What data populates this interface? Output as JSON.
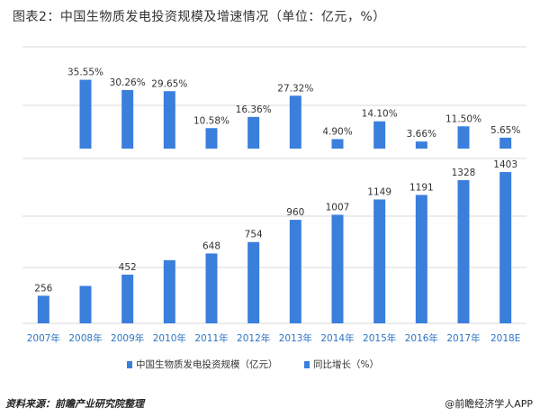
{
  "title": "图表2：中国生物质发电投资规模及增速情况（单位：亿元，%）",
  "source": "资料来源：前瞻产业研究院整理",
  "brand": "@前瞻经济学人APP",
  "colors": {
    "bar": "#3a7fdc",
    "grid": "#d9d9d9",
    "axis_text": "#2e75c6",
    "label": "#333333"
  },
  "chart_data": [
    {
      "type": "bar",
      "categories": [
        "2007年",
        "2008年",
        "2009年",
        "2010年",
        "2011年",
        "2012年",
        "2013年",
        "2014年",
        "2015年",
        "2016年",
        "2017年",
        "2018E"
      ],
      "series": [
        {
          "name": "同比增长（%）",
          "values": [
            null,
            35.55,
            30.26,
            29.65,
            10.58,
            16.36,
            27.32,
            4.9,
            14.1,
            3.66,
            11.5,
            5.65
          ],
          "labels": [
            "",
            "35.55%",
            "30.26%",
            "29.65%",
            "10.58%",
            "16.36%",
            "27.32%",
            "4.90%",
            "14.10%",
            "3.66%",
            "11.50%",
            "5.65%"
          ]
        }
      ],
      "ylim": [
        0,
        40
      ],
      "grid": true
    },
    {
      "type": "bar",
      "categories": [
        "2007年",
        "2008年",
        "2009年",
        "2010年",
        "2011年",
        "2012年",
        "2013年",
        "2014年",
        "2015年",
        "2016年",
        "2017年",
        "2018E"
      ],
      "series": [
        {
          "name": "中国生物质发电投资规模（亿元）",
          "values": [
            256,
            347,
            452,
            586,
            648,
            754,
            960,
            1007,
            1149,
            1191,
            1328,
            1403
          ],
          "labels": [
            "256",
            "",
            "452",
            "",
            "648",
            "754",
            "960",
            "1007",
            "1149",
            "1191",
            "1328",
            "1403"
          ]
        }
      ],
      "ylim": [
        0,
        1500
      ],
      "grid": true
    }
  ],
  "legend": [
    {
      "label": "中国生物质发电投资规模（亿元）"
    },
    {
      "label": "同比增长（%）"
    }
  ]
}
